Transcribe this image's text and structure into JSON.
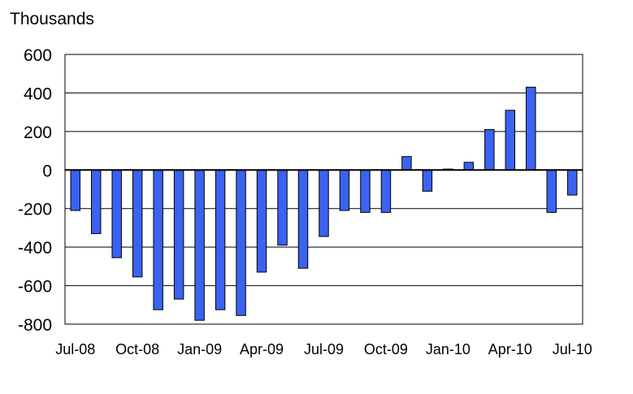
{
  "chart_data": {
    "type": "bar",
    "unit_label": "Thousands",
    "title": "",
    "xlabel": "",
    "ylabel": "",
    "ylim": [
      -800,
      600
    ],
    "yticks": [
      600,
      400,
      200,
      0,
      -200,
      -400,
      -600,
      -800
    ],
    "grid": true,
    "legend": "none",
    "bar_color": "#3B62F0",
    "categories": [
      "Jul-08",
      "Aug-08",
      "Sep-08",
      "Oct-08",
      "Nov-08",
      "Dec-08",
      "Jan-09",
      "Feb-09",
      "Mar-09",
      "Apr-09",
      "May-09",
      "Jun-09",
      "Jul-09",
      "Aug-09",
      "Sep-09",
      "Oct-09",
      "Nov-09",
      "Dec-09",
      "Jan-10",
      "Feb-10",
      "Mar-10",
      "Apr-10",
      "May-10",
      "Jun-10",
      "Jul-10"
    ],
    "tick_labels": [
      "Jul-08",
      "Oct-08",
      "Jan-09",
      "Apr-09",
      "Jul-09",
      "Oct-09",
      "Jan-10",
      "Apr-10",
      "Jul-10"
    ],
    "values": [
      -210,
      -330,
      -455,
      -555,
      -725,
      -670,
      -780,
      -725,
      -755,
      -530,
      -390,
      -510,
      -345,
      -210,
      -220,
      -220,
      70,
      -110,
      5,
      40,
      210,
      310,
      430,
      -220,
      -130
    ]
  }
}
